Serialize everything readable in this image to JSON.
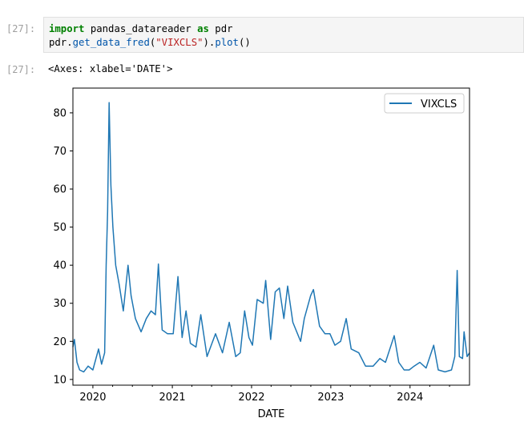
{
  "notebook": {
    "input_prompt": "[27]:",
    "output_prompt": "[27]:",
    "code_line1": {
      "kw1": "import",
      "mid": " pandas_datareader ",
      "kw2": "as",
      "tail": " pdr"
    },
    "code_line2": {
      "obj": "pdr.",
      "fn": "get_data_fred",
      "open": "(",
      "arg": "\"VIXCLS\"",
      "close_dot": ").",
      "method": "plot",
      "end": "()"
    },
    "output_repr": "<Axes: xlabel='DATE'>"
  },
  "colors": {
    "series": "#1f77b4",
    "keyword": "#008000",
    "string": "#ba2121",
    "function": "#0055aa"
  },
  "chart_data": {
    "type": "line",
    "xlabel": "DATE",
    "ylabel": "",
    "xlim": [
      "2019-10-01",
      "2024-10-01"
    ],
    "ylim": [
      8.5,
      86.5
    ],
    "xticks": [
      "2020",
      "2021",
      "2022",
      "2023",
      "2024"
    ],
    "yticks": [
      10,
      20,
      30,
      40,
      50,
      60,
      70,
      80
    ],
    "legend_position": "top-right",
    "grid": false,
    "series": [
      {
        "name": "VIXCLS",
        "x": [
          "2019-10-01",
          "2019-10-08",
          "2019-10-20",
          "2019-11-01",
          "2019-11-20",
          "2019-12-10",
          "2020-01-01",
          "2020-01-27",
          "2020-02-10",
          "2020-02-24",
          "2020-03-02",
          "2020-03-09",
          "2020-03-16",
          "2020-03-24",
          "2020-04-02",
          "2020-04-15",
          "2020-05-01",
          "2020-05-20",
          "2020-06-11",
          "2020-06-25",
          "2020-07-15",
          "2020-08-10",
          "2020-09-03",
          "2020-09-25",
          "2020-10-15",
          "2020-10-29",
          "2020-11-15",
          "2020-12-10",
          "2021-01-05",
          "2021-01-27",
          "2021-02-15",
          "2021-03-05",
          "2021-03-25",
          "2021-04-20",
          "2021-05-12",
          "2021-06-10",
          "2021-07-19",
          "2021-08-20",
          "2021-09-20",
          "2021-10-20",
          "2021-11-10",
          "2021-11-30",
          "2021-12-20",
          "2022-01-05",
          "2022-01-27",
          "2022-02-24",
          "2022-03-07",
          "2022-03-30",
          "2022-04-20",
          "2022-05-09",
          "2022-05-30",
          "2022-06-16",
          "2022-07-10",
          "2022-08-15",
          "2022-09-01",
          "2022-09-30",
          "2022-10-13",
          "2022-11-10",
          "2022-12-05",
          "2022-12-28",
          "2023-01-20",
          "2023-02-15",
          "2023-03-13",
          "2023-04-05",
          "2023-05-10",
          "2023-06-10",
          "2023-07-15",
          "2023-08-15",
          "2023-09-10",
          "2023-10-20",
          "2023-11-10",
          "2023-12-05",
          "2023-12-28",
          "2024-01-20",
          "2024-02-15",
          "2024-03-15",
          "2024-04-19",
          "2024-05-10",
          "2024-06-10",
          "2024-07-10",
          "2024-07-25",
          "2024-08-05",
          "2024-08-15",
          "2024-08-30",
          "2024-09-06",
          "2024-09-20",
          "2024-10-01"
        ],
        "values": [
          18.5,
          20.5,
          14.5,
          12.5,
          12.0,
          13.5,
          12.5,
          18.0,
          14.0,
          17.0,
          40.0,
          54.0,
          82.7,
          61.0,
          50.0,
          40.0,
          35.0,
          28.0,
          40.0,
          32.0,
          26.0,
          22.5,
          26.0,
          28.0,
          27.0,
          40.3,
          23.0,
          22.0,
          22.0,
          37.0,
          21.0,
          28.0,
          19.5,
          18.5,
          27.0,
          16.0,
          22.0,
          17.0,
          25.0,
          16.0,
          17.0,
          28.0,
          21.0,
          19.0,
          31.0,
          30.0,
          36.0,
          20.5,
          33.0,
          34.0,
          26.0,
          34.5,
          25.0,
          20.0,
          26.0,
          32.0,
          33.6,
          24.0,
          22.0,
          22.0,
          19.0,
          20.0,
          26.0,
          18.0,
          17.0,
          13.5,
          13.5,
          15.5,
          14.5,
          21.5,
          14.5,
          12.5,
          12.5,
          13.5,
          14.5,
          13.0,
          19.0,
          12.5,
          12.0,
          12.5,
          16.0,
          38.6,
          16.0,
          15.5,
          22.5,
          16.0,
          17.0
        ]
      }
    ]
  }
}
